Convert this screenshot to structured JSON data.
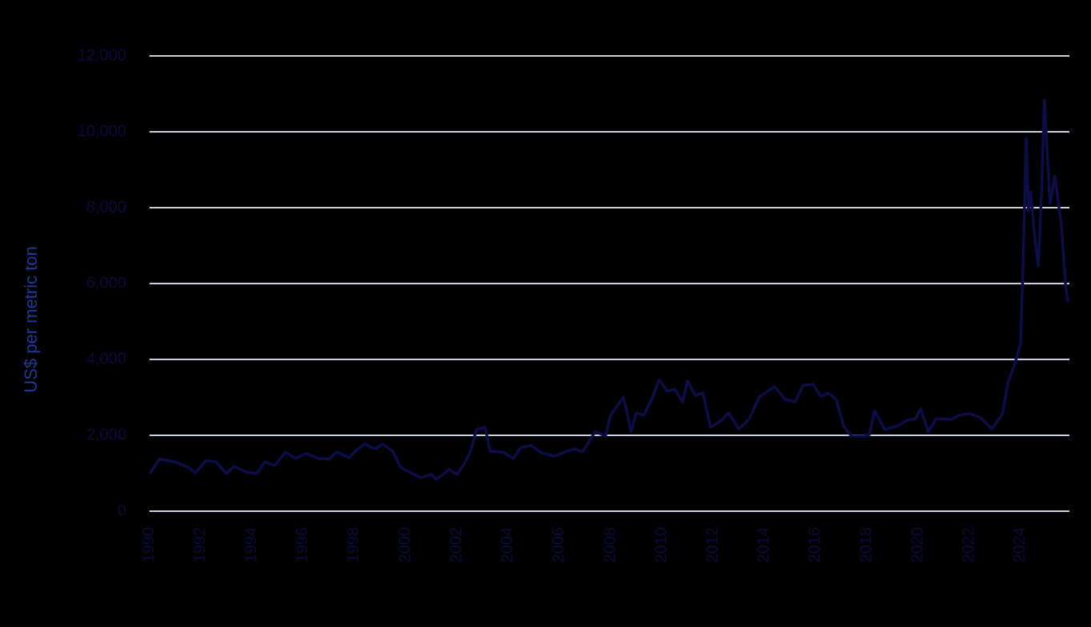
{
  "chart_data": {
    "type": "line",
    "y_label": "US$ per metric ton",
    "x": [
      1990.0,
      1990.4,
      1991.0,
      1991.5,
      1991.8,
      1992.2,
      1992.6,
      1993.0,
      1993.3,
      1993.8,
      1994.2,
      1994.5,
      1994.9,
      1995.3,
      1995.7,
      1996.1,
      1996.6,
      1997.0,
      1997.3,
      1997.8,
      1998.1,
      1998.4,
      1998.8,
      1999.1,
      1999.5,
      1999.8,
      2000.2,
      2000.6,
      2001.0,
      2001.2,
      2001.7,
      2002.0,
      2002.3,
      2002.55,
      2002.76,
      2003.1,
      2003.3,
      2003.8,
      2004.2,
      2004.5,
      2004.9,
      2005.3,
      2005.8,
      2006.3,
      2006.6,
      2006.9,
      2007.4,
      2007.8,
      2008.0,
      2008.5,
      2008.8,
      2009.0,
      2009.3,
      2009.6,
      2009.9,
      2010.2,
      2010.5,
      2010.8,
      2011.0,
      2011.3,
      2011.6,
      2011.9,
      2012.3,
      2012.6,
      2013.0,
      2013.4,
      2013.8,
      2014.2,
      2014.4,
      2014.8,
      2015.2,
      2015.5,
      2015.9,
      2016.2,
      2016.5,
      2016.8,
      2017.1,
      2017.4,
      2017.9,
      2018.1,
      2018.3,
      2018.7,
      2019.2,
      2019.6,
      2019.9,
      2020.1,
      2020.4,
      2020.7,
      2021.3,
      2021.6,
      2022.0,
      2022.4,
      2022.9,
      2023.3,
      2023.5,
      2023.78,
      2024.0,
      2024.09,
      2024.22,
      2024.31,
      2024.4,
      2024.53,
      2024.69,
      2024.82,
      2024.93,
      2025.15,
      2025.34,
      2025.6,
      2025.75,
      2025.84
    ],
    "values": [
      990,
      1370,
      1300,
      1160,
      1010,
      1330,
      1300,
      990,
      1180,
      1030,
      990,
      1300,
      1200,
      1560,
      1390,
      1520,
      1390,
      1370,
      1560,
      1410,
      1620,
      1770,
      1640,
      1770,
      1580,
      1160,
      1010,
      880,
      970,
      840,
      1100,
      970,
      1260,
      1620,
      2150,
      2210,
      1580,
      1560,
      1390,
      1680,
      1730,
      1540,
      1450,
      1580,
      1640,
      1560,
      2100,
      1980,
      2530,
      3010,
      2100,
      2590,
      2530,
      2950,
      3470,
      3160,
      3220,
      2880,
      3430,
      3050,
      3120,
      2210,
      2380,
      2590,
      2170,
      2420,
      3010,
      3200,
      3280,
      2950,
      2880,
      3310,
      3350,
      3030,
      3120,
      2950,
      2230,
      1980,
      1980,
      2020,
      2650,
      2150,
      2250,
      2400,
      2440,
      2690,
      2100,
      2440,
      2420,
      2530,
      2570,
      2480,
      2170,
      2570,
      3370,
      3890,
      4420,
      6320,
      9830,
      7890,
      8420,
      7370,
      6460,
      8420,
      10840,
      8110,
      8840,
      7470,
      6000,
      5520
    ],
    "color": "#0d0d4a",
    "xlim": [
      1990,
      2026
    ],
    "xticks": [
      1990,
      1992,
      1994,
      1996,
      1998,
      2000,
      2002,
      2004,
      2006,
      2008,
      2010,
      2012,
      2014,
      2016,
      2018,
      2020,
      2022,
      2024
    ],
    "ylim": [
      0,
      12000
    ],
    "yticks": [
      0,
      {
        "value": 2000,
        "label": "2,000"
      },
      {
        "value": 4000,
        "label": "4,000"
      },
      {
        "value": 6000,
        "label": "6,000"
      },
      {
        "value": 8000,
        "label": "8,000"
      },
      {
        "value": 10000,
        "label": "10,000"
      },
      {
        "value": 12000,
        "label": "12,000"
      }
    ],
    "grid": true
  }
}
